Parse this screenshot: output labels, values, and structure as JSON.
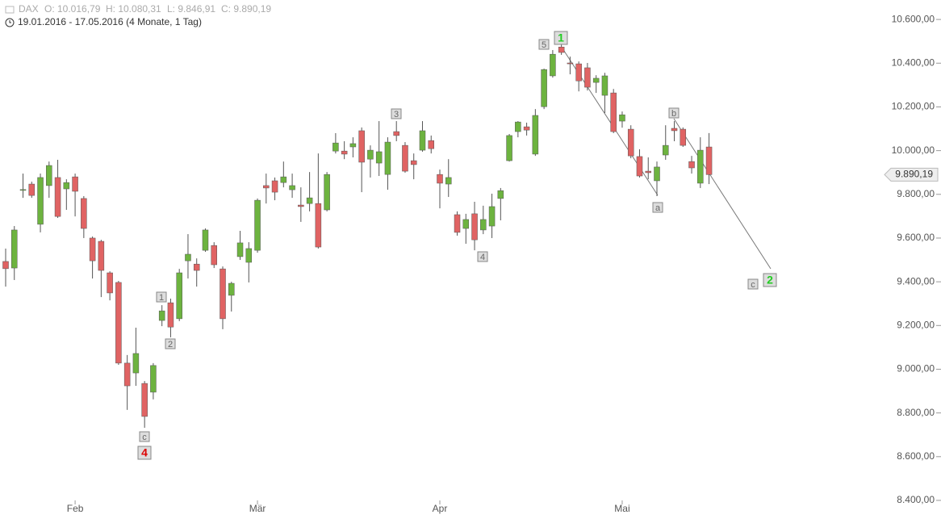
{
  "chart_data": {
    "type": "candlestick",
    "instrument": "DAX",
    "ohlc_labels": [
      "O: 10.016,79",
      "H: 10.080,31",
      "L: 9.846,91",
      "C: 9.890,19"
    ],
    "period": "19.01.2016 - 17.05.2016 (4 Monate, 1 Tag)",
    "categories": [
      null,
      null,
      null,
      null,
      null,
      null,
      null,
      null,
      "Feb",
      null,
      null,
      null,
      null,
      null,
      null,
      null,
      null,
      null,
      null,
      null,
      null,
      null,
      null,
      null,
      null,
      null,
      null,
      null,
      null,
      "Mär",
      null,
      null,
      null,
      null,
      null,
      null,
      null,
      null,
      null,
      null,
      null,
      null,
      null,
      null,
      null,
      null,
      null,
      null,
      null,
      null,
      "Apr",
      null,
      null,
      null,
      null,
      null,
      null,
      null,
      null,
      null,
      null,
      null,
      null,
      null,
      null,
      null,
      null,
      null,
      null,
      null,
      null,
      "Mai",
      null,
      null,
      null,
      null,
      null,
      null,
      null,
      null,
      null,
      null
    ],
    "open": [
      9493,
      9463,
      9818,
      9847,
      9663,
      9840,
      9877,
      9825,
      9880,
      9781,
      9600,
      9585,
      9441,
      9397,
      9028,
      8983,
      8935,
      8895,
      9223,
      9304,
      9231,
      9496,
      9481,
      9544,
      9566,
      9459,
      9338,
      9515,
      9489,
      9544,
      9840,
      9862,
      9854,
      9821,
      9751,
      9758,
      9758,
      9729,
      9998,
      9998,
      10017,
      10091,
      9961,
      9943,
      9891,
      10087,
      10024,
      9954,
      10002,
      10046,
      9891,
      9847,
      9707,
      9644,
      9711,
      9637,
      9655,
      9781,
      9954,
      10087,
      10109,
      9984,
      10201,
      10342,
      10474,
      10401,
      10397,
      10379,
      10312,
      10253,
      10264,
      10135,
      10098,
      9973,
      9906,
      9862,
      9980,
      10102,
      10098,
      9950,
      9851,
      10016.79
    ],
    "high": [
      9552,
      9655,
      9895,
      9858,
      9895,
      9950,
      9958,
      9869,
      9895,
      9792,
      9607,
      9592,
      9448,
      9404,
      9065,
      9190,
      8946,
      9028,
      9293,
      9323,
      9459,
      9618,
      9507,
      9644,
      9581,
      9470,
      9400,
      9633,
      9581,
      9781,
      9895,
      9877,
      9950,
      9895,
      9832,
      9902,
      9987,
      9902,
      10080,
      10043,
      10061,
      10106,
      10024,
      10135,
      10061,
      10135,
      10039,
      9987,
      10135,
      10069,
      9913,
      9961,
      9722,
      9711,
      9766,
      9748,
      9803,
      9829,
      10076,
      10135,
      10128,
      10190,
      10375,
      10460,
      10486,
      10430,
      10408,
      10401,
      10345,
      10356,
      10282,
      10179,
      10116,
      10006,
      9969,
      9950,
      10116,
      10135,
      10106,
      9976,
      10061,
      10080.31
    ],
    "low": [
      9378,
      9408,
      9784,
      9784,
      9626,
      9784,
      9692,
      9729,
      9699,
      9600,
      9415,
      9330,
      9315,
      9020,
      8814,
      8924,
      8732,
      8862,
      9197,
      9146,
      9220,
      9415,
      9378,
      9537,
      9463,
      9183,
      9264,
      9500,
      9397,
      9533,
      9758,
      9773,
      9832,
      9784,
      9674,
      9722,
      9552,
      9722,
      9987,
      9961,
      9969,
      9810,
      9877,
      9884,
      9821,
      10043,
      9899,
      9869,
      9995,
      9987,
      9736,
      9788,
      9611,
      9574,
      9544,
      9618,
      9600,
      9681,
      9950,
      10061,
      10069,
      9976,
      10190,
      10334,
      10438,
      10349,
      10271,
      10275,
      10264,
      10172,
      10080,
      10105,
      9965,
      9877,
      9869,
      9792,
      9958,
      10043,
      10017,
      9895,
      9829,
      9846.91
    ],
    "close": [
      9460,
      9637,
      9822,
      9795,
      9877,
      9932,
      9699,
      9854,
      9814,
      9644,
      9496,
      9452,
      9349,
      9028,
      8924,
      9072,
      8784,
      9017,
      9267,
      9193,
      9441,
      9526,
      9452,
      9637,
      9478,
      9231,
      9393,
      9578,
      9552,
      9773,
      9829,
      9810,
      9880,
      9840,
      9744,
      9784,
      9559,
      9891,
      10035,
      9984,
      10032,
      9947,
      10002,
      9995,
      10039,
      10069,
      9906,
      9936,
      10091,
      10009,
      9851,
      9877,
      9626,
      9685,
      9592,
      9685,
      9744,
      9817,
      10069,
      10131,
      10094,
      10161,
      10371,
      10441,
      10449,
      10397,
      10319,
      10290,
      10331,
      10342,
      10087,
      10164,
      9976,
      9884,
      9899,
      9925,
      10024,
      10091,
      10024,
      9921,
      10002,
      9890.19
    ],
    "up_color": "#6db33f",
    "down_color": "#e06363",
    "last_label": "9.890,19",
    "ylim": [
      8315,
      10689
    ],
    "yticks": [
      {
        "value": 8400,
        "label": "8.400,00"
      },
      {
        "value": 8600,
        "label": "8.600,00"
      },
      {
        "value": 8800,
        "label": "8.800,00"
      },
      {
        "value": 9000,
        "label": "9.000,00"
      },
      {
        "value": 9200,
        "label": "9.200,00"
      },
      {
        "value": 9400,
        "label": "9.400,00"
      },
      {
        "value": 9600,
        "label": "9.600,00"
      },
      {
        "value": 9800,
        "label": "9.800,00"
      },
      {
        "value": 10000,
        "label": "10.000,00"
      },
      {
        "value": 10200,
        "label": "10.200,00"
      },
      {
        "value": 10400,
        "label": "10.400,00"
      },
      {
        "value": 10600,
        "label": "10.600,00"
      }
    ],
    "annotations": [
      {
        "text": "1",
        "color": "#666666"
      },
      {
        "text": "2",
        "color": "#666666"
      },
      {
        "text": "3",
        "color": "#666666"
      },
      {
        "text": "4",
        "color": "#666666"
      },
      {
        "text": "5",
        "color": "#666666"
      },
      {
        "text": "1",
        "color": "#22cc22"
      },
      {
        "text": "a",
        "color": "#666666"
      },
      {
        "text": "b",
        "color": "#666666"
      },
      {
        "text": "c",
        "color": "#666666"
      },
      {
        "text": "4",
        "color": "#dd0000"
      },
      {
        "text": "c",
        "color": "#666666"
      },
      {
        "text": "2",
        "color": "#22cc22"
      }
    ]
  }
}
